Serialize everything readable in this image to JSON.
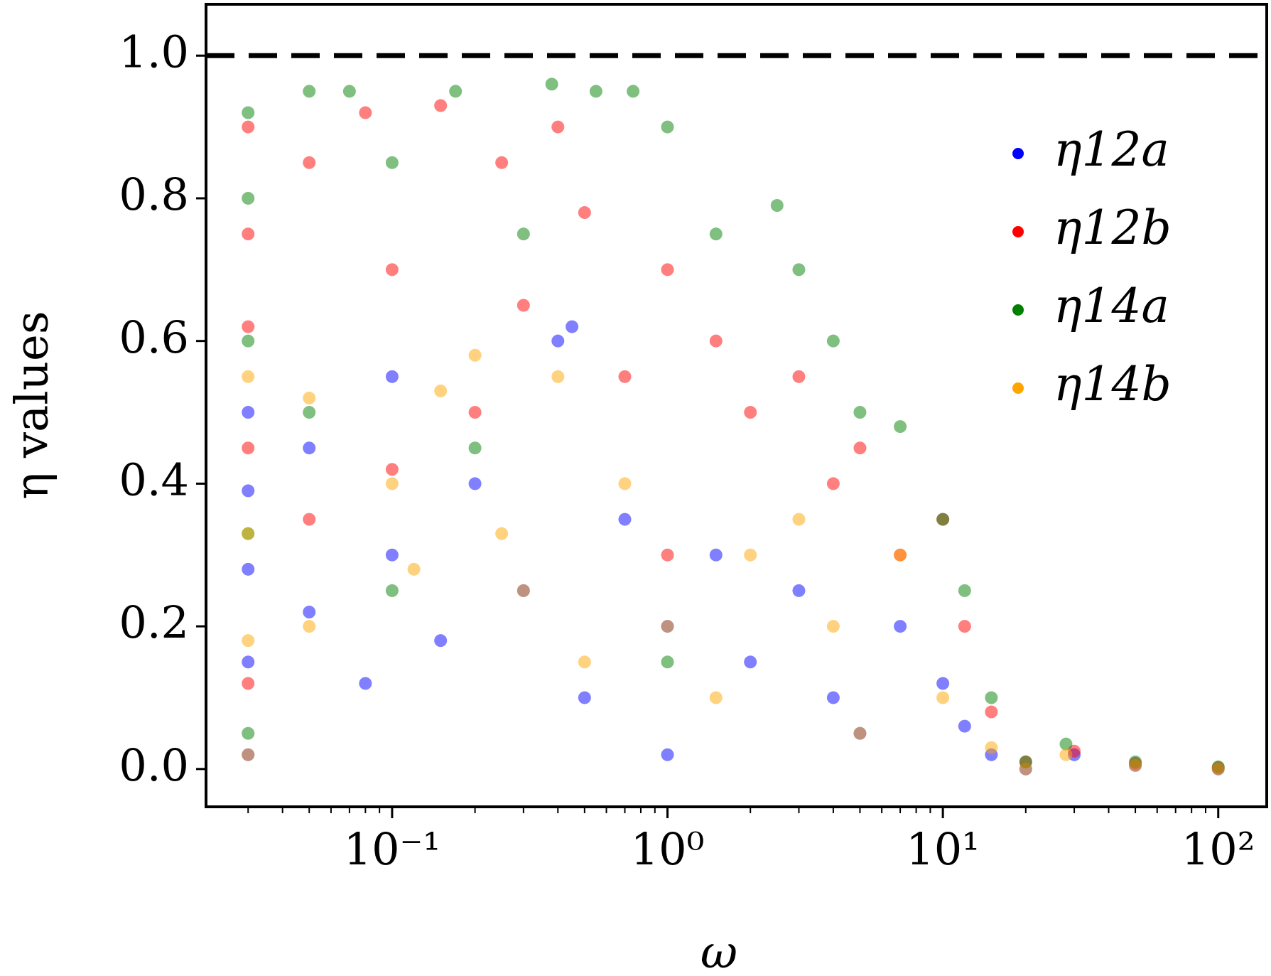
{
  "chart_data": {
    "type": "scatter",
    "xlabel": "ω",
    "ylabel": "η values",
    "xscale": "log",
    "xlim": [
      0.0211,
      150
    ],
    "ylim": [
      -0.053,
      1.072
    ],
    "xticks": [
      {
        "value": 0.1,
        "label": "10⁻¹"
      },
      {
        "value": 1,
        "label": "10⁰"
      },
      {
        "value": 10,
        "label": "10¹"
      },
      {
        "value": 100,
        "label": "10²"
      }
    ],
    "yticks": [
      {
        "value": 0,
        "label": "0.0"
      },
      0.2,
      0.4,
      0.6,
      0.8,
      {
        "value": 1,
        "label": "1.0"
      }
    ],
    "hline": {
      "y": 1,
      "color": "#000000",
      "style": "dashed"
    },
    "legend": "upper right",
    "alpha": 0.5,
    "series": [
      {
        "name": "η12a",
        "color": "#0000ff",
        "x": [
          0.03,
          0.03,
          0.03,
          0.03,
          0.03,
          0.05,
          0.05,
          0.08,
          0.1,
          0.1,
          0.15,
          0.2,
          0.3,
          0.4,
          0.45,
          0.5,
          0.7,
          1,
          1,
          1.5,
          2,
          3,
          4,
          5,
          7,
          10,
          12,
          15,
          20,
          30,
          50,
          100
        ],
        "values": [
          0.02,
          0.15,
          0.28,
          0.39,
          0.5,
          0.22,
          0.45,
          0.12,
          0.3,
          0.55,
          0.18,
          0.4,
          0.25,
          0.6,
          0.62,
          0.1,
          0.35,
          0.02,
          0.2,
          0.3,
          0.15,
          0.25,
          0.1,
          0.05,
          0.2,
          0.12,
          0.06,
          0.02,
          0,
          0.02,
          0.005,
          0
        ]
      },
      {
        "name": "η12b",
        "color": "#ff0000",
        "x": [
          0.03,
          0.03,
          0.03,
          0.03,
          0.03,
          0.05,
          0.05,
          0.08,
          0.1,
          0.1,
          0.15,
          0.2,
          0.25,
          0.3,
          0.4,
          0.5,
          0.7,
          1,
          1,
          1.5,
          2,
          3,
          4,
          5,
          7,
          10,
          12,
          15,
          20,
          30,
          50,
          100
        ],
        "values": [
          0.9,
          0.75,
          0.62,
          0.45,
          0.12,
          0.85,
          0.35,
          0.92,
          0.7,
          0.42,
          0.93,
          0.5,
          0.85,
          0.65,
          0.9,
          0.78,
          0.55,
          0.7,
          0.3,
          0.6,
          0.5,
          0.55,
          0.4,
          0.45,
          0.3,
          0.35,
          0.2,
          0.08,
          0.01,
          0.025,
          0.008,
          0.002
        ]
      },
      {
        "name": "η14a",
        "color": "#008000",
        "x": [
          0.03,
          0.03,
          0.03,
          0.03,
          0.03,
          0.05,
          0.05,
          0.07,
          0.1,
          0.1,
          0.17,
          0.2,
          0.3,
          0.38,
          0.55,
          0.75,
          1,
          1,
          1.5,
          2.5,
          3,
          4,
          5,
          7,
          10,
          12,
          15,
          20,
          28,
          50,
          100
        ],
        "values": [
          0.92,
          0.8,
          0.6,
          0.33,
          0.05,
          0.95,
          0.5,
          0.95,
          0.85,
          0.25,
          0.95,
          0.45,
          0.75,
          0.96,
          0.95,
          0.95,
          0.9,
          0.15,
          0.75,
          0.79,
          0.7,
          0.6,
          0.5,
          0.48,
          0.35,
          0.25,
          0.1,
          0.01,
          0.035,
          0.01,
          0.003
        ]
      },
      {
        "name": "η14b",
        "color": "#ffa500",
        "x": [
          0.03,
          0.03,
          0.03,
          0.03,
          0.05,
          0.05,
          0.1,
          0.12,
          0.15,
          0.2,
          0.25,
          0.3,
          0.4,
          0.5,
          0.7,
          1,
          1.5,
          2,
          3,
          4,
          5,
          7,
          10,
          15,
          20,
          28,
          50,
          100
        ],
        "values": [
          0.02,
          0.18,
          0.33,
          0.55,
          0.2,
          0.52,
          0.4,
          0.28,
          0.53,
          0.58,
          0.33,
          0.25,
          0.55,
          0.15,
          0.4,
          0.2,
          0.1,
          0.3,
          0.35,
          0.2,
          0.05,
          0.3,
          0.1,
          0.03,
          0,
          0.02,
          0.005,
          0
        ]
      }
    ]
  }
}
